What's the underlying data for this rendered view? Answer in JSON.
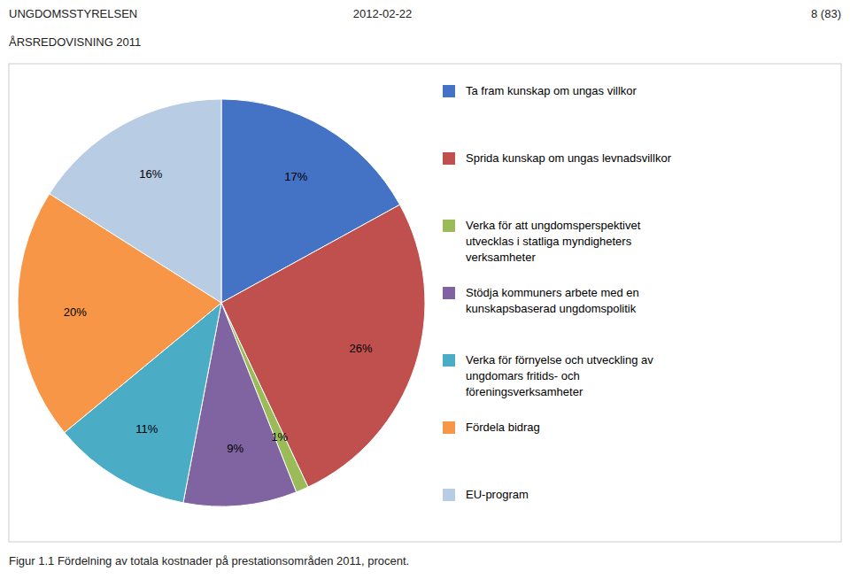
{
  "chart_data": {
    "type": "pie",
    "title": "Figur 1.1 Fördelning av totala kostnader på prestationsområden 2011, procent.",
    "annotations": [
      "UNGDOMSSTYRELSEN",
      "2012-02-22",
      "8 (83)",
      "ÅRSREDOVISNING 2011"
    ],
    "categories": [
      "Ta fram kunskap om ungas villkor",
      "Sprida kunskap om ungas levnadsvillkor",
      "Verka för att ungdomsperspektivet\nutvecklas i statliga myndigheters\nverksamheter",
      "Stödja kommuners arbete med en\nkunskapsbaserad ungdomspolitik",
      "Verka för förnyelse och utveckling av\nungdomars fritids- och\nföreningsverksamheter",
      "Fördela bidrag",
      "EU-program"
    ],
    "values": [
      17,
      26,
      1,
      9,
      11,
      20,
      16
    ],
    "value_labels": [
      "17%",
      "26%",
      "1%",
      "9%",
      "11%",
      "20%",
      "16%"
    ],
    "colors": [
      "#4472C4",
      "#C0504D",
      "#9BBB59",
      "#8064A2",
      "#4BACC6",
      "#F79646",
      "#B8CCE4"
    ],
    "data_labels": true,
    "legend": "right"
  }
}
